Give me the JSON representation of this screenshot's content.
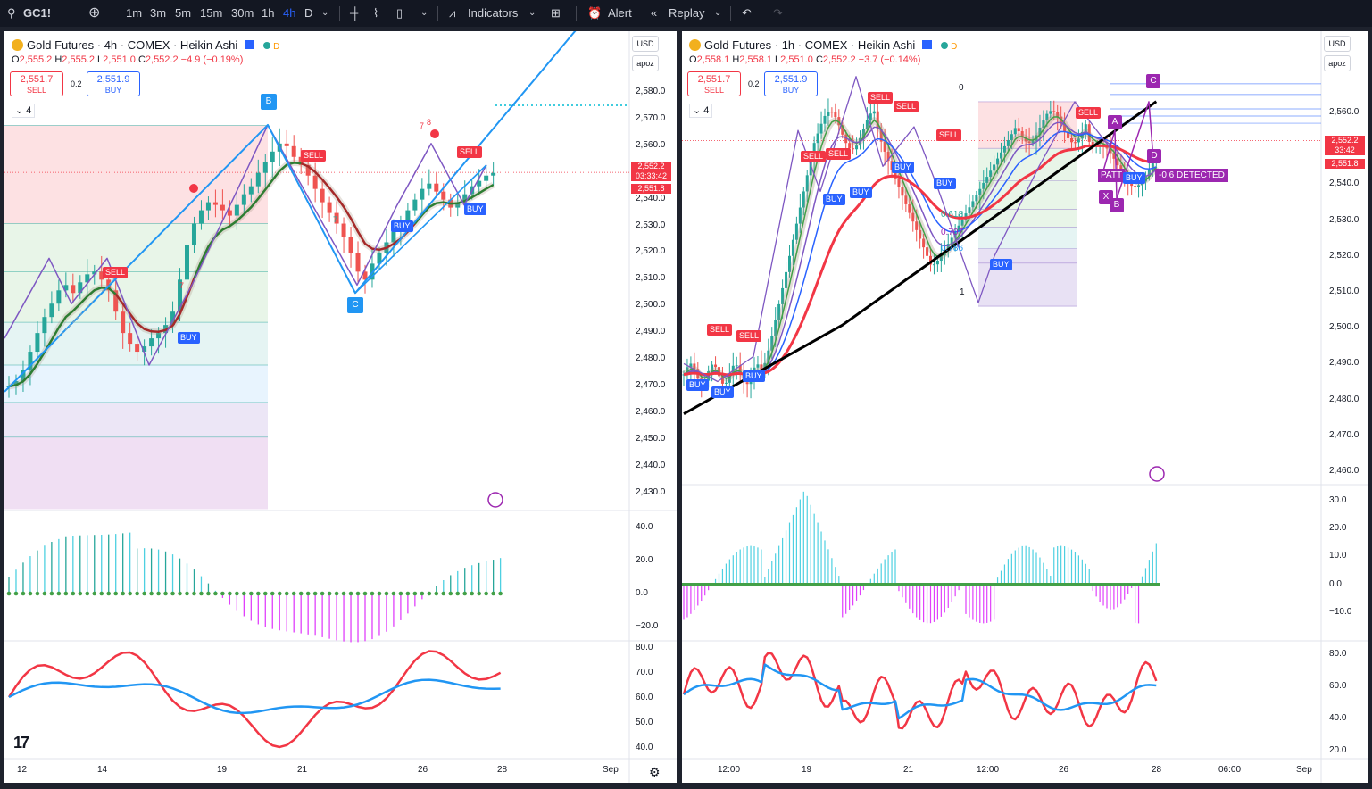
{
  "toolbar": {
    "symbol": "GC1!",
    "intervals": [
      "1m",
      "3m",
      "5m",
      "15m",
      "30m",
      "1h",
      "4h",
      "D"
    ],
    "active": "4h",
    "indicators": "Indicators",
    "alert": "Alert",
    "replay": "Replay"
  },
  "left": {
    "title": "Gold Futures · 4h · COMEX · Heikin Ashi",
    "badge": "D",
    "ohlc": {
      "o": "O",
      "ov": "2,555.2",
      "h": "H",
      "hv": "2,555.2",
      "l": "L",
      "lv": "2,551.0",
      "c": "C",
      "cv": "2,552.2",
      "chg": "−4.9 (−0.19%)"
    },
    "sell_price": "2,551.7",
    "sell_label": "SELL",
    "spread": "0.2",
    "buy_price": "2,551.9",
    "buy_label": "BUY",
    "collapse": "4",
    "currency": "USD",
    "scale": "apoz",
    "yticks": [
      "2,580.0",
      "2,570.0",
      "2,560.0",
      "2,550.0",
      "2,540.0",
      "2,530.0",
      "2,520.0",
      "2,510.0",
      "2,500.0",
      "2,490.0",
      "2,480.0",
      "2,470.0",
      "2,460.0",
      "2,450.0",
      "2,440.0",
      "2,430.0"
    ],
    "price_tag": [
      "2,552.2",
      "03:33:42",
      "2,551.8"
    ],
    "osc_ticks": [
      "40.0",
      "20.0",
      "0.0",
      "−20.0"
    ],
    "rsi_ticks": [
      "80.0",
      "70.0",
      "60.0",
      "50.0",
      "40.0"
    ],
    "xticks": [
      "12",
      "14",
      "19",
      "21",
      "26",
      "28",
      "Sep"
    ],
    "labels": {
      "B": "B",
      "C": "C",
      "sell": "SELL",
      "buy": "BUY",
      "n7": "7",
      "n8": "8"
    }
  },
  "right": {
    "title": "Gold Futures · 1h · COMEX · Heikin Ashi",
    "badge": "D",
    "ohlc": {
      "o": "O",
      "ov": "2,558.1",
      "h": "H",
      "hv": "2,558.1",
      "l": "L",
      "lv": "2,551.0",
      "c": "C",
      "cv": "2,552.2",
      "chg": "−3.7 (−0.14%)"
    },
    "sell_price": "2,551.7",
    "sell_label": "SELL",
    "spread": "0.2",
    "buy_price": "2,551.9",
    "buy_label": "BUY",
    "collapse": "4",
    "currency": "USD",
    "scale": "apoz",
    "yticks": [
      "2,560.0",
      "2,550.0",
      "2,540.0",
      "2,530.0",
      "2,520.0",
      "2,510.0",
      "2,500.0",
      "2,490.0",
      "2,480.0",
      "2,470.0",
      "2,460.0"
    ],
    "price_tag": [
      "2,552.2",
      "33:42",
      "2,551.8"
    ],
    "osc_ticks": [
      "30.0",
      "20.0",
      "10.0",
      "0.0",
      "−10.0"
    ],
    "rsi_ticks": [
      "80.0",
      "60.0",
      "40.0",
      "20.0"
    ],
    "xticks": [
      "12:00",
      "19",
      "21",
      "12:00",
      "26",
      "28",
      "06:00",
      "Sep"
    ],
    "fib": [
      "0",
      "0.618",
      "0.707",
      "0.786",
      "1"
    ],
    "pattern": "-0 6 DETECTED",
    "labels": {
      "A": "A",
      "B": "B",
      "C": "C",
      "D": "D",
      "X": "X",
      "sell": "SELL",
      "buy": "BUY",
      "patt": "PATT"
    }
  },
  "colors": {
    "bull": "#26a69a",
    "bear": "#ef5350",
    "green_ma": "#2e7d32",
    "red_ma": "#f23645",
    "blue": "#2196f3",
    "purple": "#7e57c2",
    "magenta": "#9c27b0",
    "cyan": "#4dd0e1"
  }
}
